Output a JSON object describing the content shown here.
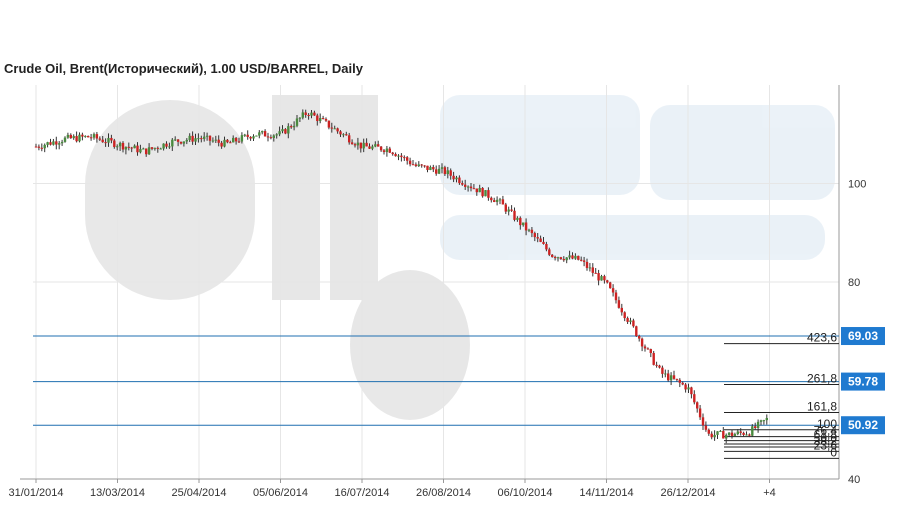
{
  "title": "Crude Oil, Brent(Исторический), 1.00 USD/BARREL, Daily",
  "chart_data": {
    "type": "candlestick",
    "title": "Crude Oil, Brent(Исторический), 1.00 USD/BARREL, Daily",
    "x_tick_labels": [
      "31/01/2014",
      "13/03/2014",
      "25/04/2014",
      "05/06/2014",
      "16/07/2014",
      "26/08/2014",
      "06/10/2014",
      "14/11/2014",
      "26/12/2014",
      "+4"
    ],
    "y_tick_labels": [
      "100",
      "80",
      "40"
    ],
    "ylim": [
      40,
      120
    ],
    "y_ticks": [
      100,
      80,
      40
    ],
    "grid": true,
    "price_curve": [
      {
        "x": "31/01/2014",
        "y": 107.5
      },
      {
        "x": "13/02/2014",
        "y": 109.0
      },
      {
        "x": "28/02/2014",
        "y": 109.5
      },
      {
        "x": "13/03/2014",
        "y": 108.0
      },
      {
        "x": "28/03/2014",
        "y": 106.5
      },
      {
        "x": "11/04/2014",
        "y": 108.5
      },
      {
        "x": "25/04/2014",
        "y": 109.3
      },
      {
        "x": "09/05/2014",
        "y": 108.0
      },
      {
        "x": "23/05/2014",
        "y": 110.0
      },
      {
        "x": "05/06/2014",
        "y": 110.0
      },
      {
        "x": "19/06/2014",
        "y": 114.5
      },
      {
        "x": "03/07/2014",
        "y": 111.0
      },
      {
        "x": "16/07/2014",
        "y": 107.5
      },
      {
        "x": "30/07/2014",
        "y": 107.0
      },
      {
        "x": "12/08/2014",
        "y": 103.5
      },
      {
        "x": "26/08/2014",
        "y": 102.5
      },
      {
        "x": "09/09/2014",
        "y": 99.5
      },
      {
        "x": "23/09/2014",
        "y": 96.5
      },
      {
        "x": "06/10/2014",
        "y": 91.0
      },
      {
        "x": "20/10/2014",
        "y": 85.5
      },
      {
        "x": "03/11/2014",
        "y": 84.5
      },
      {
        "x": "14/11/2014",
        "y": 79.5
      },
      {
        "x": "28/11/2014",
        "y": 70.5
      },
      {
        "x": "12/12/2014",
        "y": 61.5
      },
      {
        "x": "26/12/2014",
        "y": 58.5
      },
      {
        "x": "09/01/2015",
        "y": 49.0
      },
      {
        "x": "16/01/2015",
        "y": 49.0
      },
      {
        "x": "23/01/2015",
        "y": 49.5
      },
      {
        "x": "+4",
        "y": 52.5
      }
    ],
    "horizontal_lines": [
      69.03,
      59.78,
      50.92
    ],
    "price_tags": [
      "69.03",
      "59.78",
      "50.92"
    ],
    "fib_levels": [
      "423,6",
      "261,8",
      "161,8",
      "100",
      "76,4",
      "61,8",
      "50,0",
      "38,2",
      "23,6",
      "0"
    ],
    "fib_values": [
      67.5,
      59.2,
      53.5,
      50.0,
      48.6,
      47.8,
      47.1,
      46.5,
      45.6,
      44.2
    ]
  },
  "colors": {
    "up": "#4a8a3f",
    "down": "#cc2222",
    "line": "#1f6fb0",
    "tag": "#1f7ad0",
    "grid": "#e6e6e6",
    "axis": "#999999"
  }
}
